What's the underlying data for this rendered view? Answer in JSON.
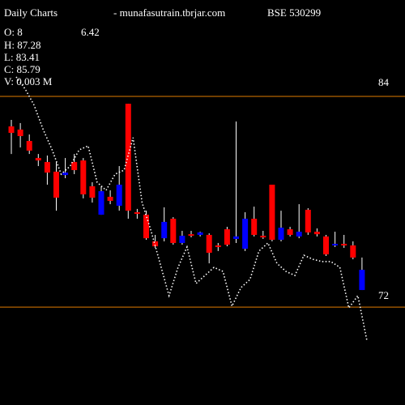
{
  "chart_data": {
    "type": "candlestick",
    "title": "Daily Charts",
    "subtitle": "- munafasutrain.tbrjar.com",
    "ticker": "BSE 530299",
    "info": [
      "O: 8",
      "6.42",
      "H: 87.28",
      "L: 83.41",
      "C: 85.79",
      "V: 0.003 M"
    ],
    "ylim": [
      66.42,
      89.49
    ],
    "yticks": [
      84,
      72
    ],
    "grid": true,
    "grid_color": "#e07b00",
    "up_color": "#0000ff",
    "down_color": "#ff0000",
    "open": [
      82.29,
      82.11,
      81.46,
      80.49,
      80.26,
      79.71,
      79.52,
      80.26,
      80.35,
      78.88,
      77.26,
      78.28,
      77.77,
      83.58,
      77.4,
      77.26,
      75.74,
      75.92,
      77.03,
      75.65,
      76.15,
      76.11,
      76.11,
      75.51,
      76.43,
      75.88,
      75.32,
      77.03,
      76.06,
      78.97,
      75.83,
      76.43,
      76.02,
      77.54,
      76.29,
      76.02,
      75.51,
      75.6,
      75.51,
      72.97
    ],
    "high": [
      82.66,
      82.48,
      81.83,
      80.72,
      80.63,
      80.26,
      80.49,
      80.72,
      80.49,
      79.11,
      78.88,
      78.65,
      80.03,
      83.58,
      77.59,
      77.49,
      76.11,
      77.68,
      77.12,
      76.34,
      76.34,
      76.29,
      76.2,
      75.65,
      76.57,
      82.57,
      77.4,
      77.72,
      76.34,
      78.97,
      77.49,
      76.57,
      77.86,
      77.63,
      76.48,
      76.11,
      76.29,
      76.11,
      75.74,
      74.82
    ],
    "low": [
      80.72,
      81.09,
      80.72,
      80.03,
      78.97,
      77.49,
      79.34,
      79.57,
      78.19,
      77.95,
      77.26,
      77.86,
      77.49,
      77.03,
      77.03,
      75.83,
      75.37,
      75.74,
      75.55,
      75.55,
      75.97,
      76.02,
      74.49,
      75.19,
      75.46,
      75.65,
      75.19,
      76.02,
      75.88,
      75.74,
      75.74,
      76.02,
      75.92,
      76.11,
      76.02,
      74.91,
      75.42,
      75.37,
      74.72,
      72.97
    ],
    "close": [
      81.92,
      81.74,
      80.91,
      80.35,
      79.66,
      78.23,
      79.66,
      79.8,
      78.42,
      78.23,
      78.6,
      78.05,
      78.97,
      77.49,
      77.31,
      75.92,
      75.46,
      76.85,
      75.65,
      76.06,
      76.06,
      76.25,
      75.09,
      75.42,
      75.55,
      76.02,
      77.03,
      76.11,
      75.97,
      75.83,
      76.52,
      76.11,
      76.29,
      76.25,
      76.15,
      75.0,
      75.6,
      75.51,
      74.82,
      74.12
    ],
    "line": {
      "color": "#ffffff",
      "values": [
        85.11,
        84.42,
        83.49,
        82.11,
        80.95,
        79.57,
        80.03,
        80.95,
        81.18,
        79.11,
        78.65,
        79.57,
        79.8,
        81.65,
        77.95,
        76.34,
        74.49,
        72.65,
        74.26,
        75.42,
        73.34,
        73.8,
        74.26,
        74.03,
        72.05,
        73.11,
        73.57,
        75.19,
        75.65,
        74.49,
        74.03,
        73.8,
        74.95,
        74.72,
        74.59,
        74.59,
        74.26,
        71.95,
        72.65,
        70.11
      ]
    }
  }
}
